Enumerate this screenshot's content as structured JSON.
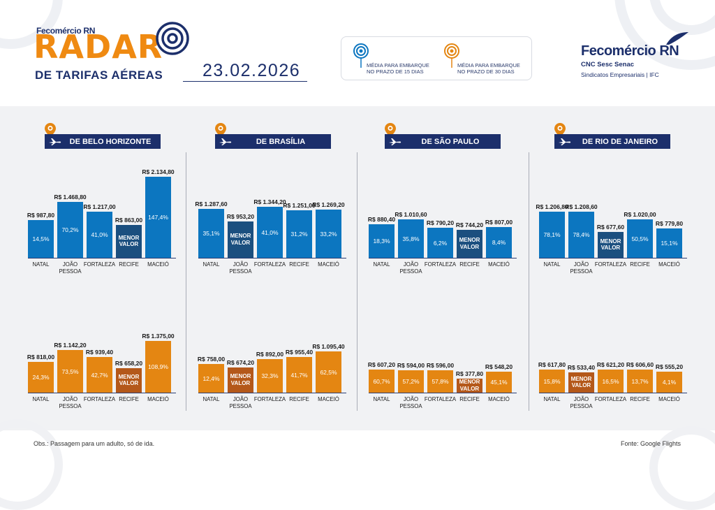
{
  "header": {
    "brand_small": "Fecomércio RN",
    "title": "RADAR",
    "subtitle": "DE TARIFAS AÉREAS",
    "date": "23.02.2026",
    "legend": [
      {
        "text1": "MÉDIA PARA EMBARQUE",
        "text2": "NO PRAZO DE 15 DIAS",
        "color": "#0c76c0"
      },
      {
        "text1": "MÉDIA PARA EMBARQUE",
        "text2": "NO PRAZO DE 30 DIAS",
        "color": "#e48612"
      }
    ],
    "logo_main": "Fecomércio RN",
    "logo_sub1": "CNC Sesc Senac",
    "logo_sub2": "Sindicatos Empresariais  |  IFC"
  },
  "colors": {
    "blue": "#0c76c0",
    "orange": "#e48612",
    "min_blue": "#1b4f7f",
    "min_orange": "#b4581a",
    "navy": "#1c2f6b"
  },
  "menor_valor": [
    "MENOR",
    "VALOR"
  ],
  "footer": {
    "obs": "Obs.: Passagem para um adulto, só de ida.",
    "source": "Fonte: Google Flights"
  },
  "chart_data": [
    {
      "type": "bar",
      "origin": "DE BELO HORIZONTE",
      "categories": [
        [
          "NATAL"
        ],
        [
          "JOÃO",
          "PESSOA"
        ],
        [
          "FORTALEZA"
        ],
        [
          "RECIFE"
        ],
        [
          "MACEIÓ"
        ]
      ],
      "series": [
        {
          "horizon": "15 dias",
          "values": [
            987.8,
            1468.8,
            1217.0,
            863.0,
            2134.8
          ],
          "labels": [
            "R$ 987,80",
            "R$ 1.468,80",
            "R$ 1.217,00",
            "R$ 863,00",
            "R$ 2.134,80"
          ],
          "pct": [
            "14,5%",
            "70,2%",
            "41,0%",
            "",
            "147,4%"
          ],
          "min_index": 3
        },
        {
          "horizon": "30 dias",
          "values": [
            818.0,
            1142.2,
            939.4,
            658.2,
            1375.0
          ],
          "labels": [
            "R$ 818,00",
            "R$ 1.142,20",
            "R$ 939,40",
            "R$ 658,20",
            "R$ 1.375,00"
          ],
          "pct": [
            "24,3%",
            "73,5%",
            "42,7%",
            "",
            "108,9%"
          ],
          "min_index": 3
        }
      ]
    },
    {
      "type": "bar",
      "origin": "DE BRASÍLIA",
      "categories": [
        [
          "NATAL"
        ],
        [
          "JOÃO",
          "PESSOA"
        ],
        [
          "FORTALEZA"
        ],
        [
          "RECIFE"
        ],
        [
          "MACEIÓ"
        ]
      ],
      "series": [
        {
          "horizon": "15 dias",
          "values": [
            1287.6,
            953.2,
            1344.2,
            1251.0,
            1269.2
          ],
          "labels": [
            "R$ 1.287,60",
            "R$ 953,20",
            "R$ 1.344,20",
            "R$ 1.251,00",
            "R$ 1.269,20"
          ],
          "pct": [
            "35,1%",
            "",
            "41,0%",
            "31,2%",
            "33,2%"
          ],
          "min_index": 1
        },
        {
          "horizon": "30 dias",
          "values": [
            758.0,
            674.2,
            892.0,
            955.4,
            1095.4
          ],
          "labels": [
            "R$ 758,00",
            "R$ 674,20",
            "R$ 892,00",
            "R$ 955,40",
            "R$ 1.095,40"
          ],
          "pct": [
            "12,4%",
            "",
            "32,3%",
            "41,7%",
            "62,5%"
          ],
          "min_index": 1
        }
      ]
    },
    {
      "type": "bar",
      "origin": "DE SÃO PAULO",
      "categories": [
        [
          "NATAL"
        ],
        [
          "JOÃO",
          "PESSOA"
        ],
        [
          "FORTALEZA"
        ],
        [
          "RECIFE"
        ],
        [
          "MACEIÓ"
        ]
      ],
      "series": [
        {
          "horizon": "15 dias",
          "values": [
            880.4,
            1010.6,
            790.2,
            744.2,
            807.0
          ],
          "labels": [
            "R$ 880,40",
            "R$ 1.010,60",
            "R$ 790,20",
            "R$ 744,20",
            "R$ 807,00"
          ],
          "pct": [
            "18,3%",
            "35,8%",
            "6,2%",
            "",
            "8,4%"
          ],
          "min_index": 3
        },
        {
          "horizon": "30 dias",
          "values": [
            607.2,
            594.0,
            596.0,
            377.8,
            548.2
          ],
          "labels": [
            "R$ 607,20",
            "R$ 594,00",
            "R$ 596,00",
            "R$ 377,80",
            "R$ 548,20"
          ],
          "pct": [
            "60,7%",
            "57,2%",
            "57,8%",
            "",
            "45,1%"
          ],
          "min_index": 3
        }
      ]
    },
    {
      "type": "bar",
      "origin": "DE RIO DE JANEIRO",
      "categories": [
        [
          "NATAL"
        ],
        [
          "JOÃO",
          "PESSOA"
        ],
        [
          "FORTALEZA"
        ],
        [
          "RECIFE"
        ],
        [
          "MACEIÓ"
        ]
      ],
      "series": [
        {
          "horizon": "15 dias",
          "values": [
            1206.8,
            1208.6,
            677.6,
            1020.0,
            779.8
          ],
          "labels": [
            "R$ 1.206,80",
            "R$ 1.208,60",
            "R$ 677,60",
            "R$ 1.020,00",
            "R$ 779,80"
          ],
          "pct": [
            "78,1%",
            "78,4%",
            "",
            "50,5%",
            "15,1%"
          ],
          "min_index": 2
        },
        {
          "horizon": "30 dias",
          "values": [
            617.8,
            533.4,
            621.2,
            606.6,
            555.2
          ],
          "labels": [
            "R$ 617,80",
            "R$ 533,40",
            "R$ 621,20",
            "R$ 606,60",
            "R$ 555,20"
          ],
          "pct": [
            "15,8%",
            "",
            "16,5%",
            "13,7%",
            "4,1%"
          ],
          "min_index": 1
        }
      ]
    }
  ]
}
